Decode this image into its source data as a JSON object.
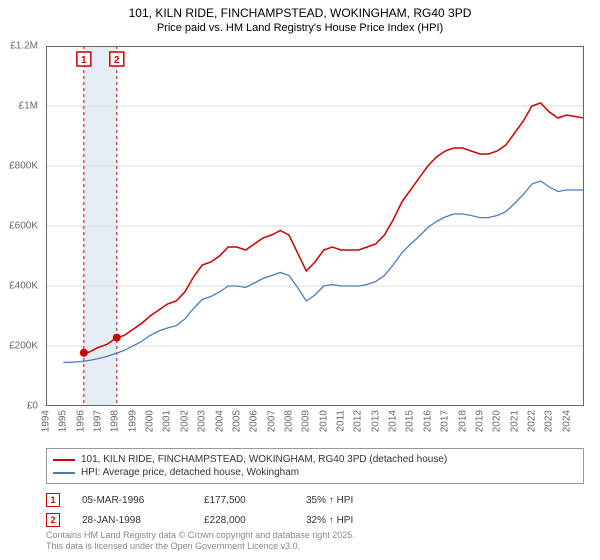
{
  "title_line1": "101, KILN RIDE, FINCHAMPSTEAD, WOKINGHAM, RG40 3PD",
  "title_line2": "Price paid vs. HM Land Registry's House Price Index (HPI)",
  "chart": {
    "type": "line",
    "background_color": "#ffffff",
    "plot_border_color": "#666666",
    "grid_color": "#dcdcdc",
    "xlim": [
      1994,
      2025
    ],
    "ylim": [
      0,
      1200000
    ],
    "y_ticks": [
      0,
      200000,
      400000,
      600000,
      800000,
      1000000,
      1200000
    ],
    "y_tick_labels": [
      "£0",
      "£200K",
      "£400K",
      "£600K",
      "£800K",
      "£1M",
      "£1.2M"
    ],
    "x_ticks": [
      1994,
      1995,
      1996,
      1997,
      1998,
      1999,
      2000,
      2001,
      2002,
      2003,
      2004,
      2005,
      2006,
      2007,
      2008,
      2009,
      2010,
      2011,
      2012,
      2013,
      2014,
      2015,
      2016,
      2017,
      2018,
      2019,
      2020,
      2021,
      2022,
      2023,
      2024
    ],
    "label_fontsize": 10,
    "label_color": "#666666",
    "series": [
      {
        "name": "101, KILN RIDE, FINCHAMPSTEAD, WOKINGHAM, RG40 3PD (detached house)",
        "color": "#cc0000",
        "line_width": 1.5,
        "data": [
          [
            1996.18,
            177500
          ],
          [
            1996.5,
            180000
          ],
          [
            1997,
            195000
          ],
          [
            1997.5,
            205000
          ],
          [
            1998.08,
            228000
          ],
          [
            1998.5,
            235000
          ],
          [
            1999,
            255000
          ],
          [
            1999.5,
            275000
          ],
          [
            2000,
            300000
          ],
          [
            2000.5,
            320000
          ],
          [
            2001,
            340000
          ],
          [
            2001.5,
            350000
          ],
          [
            2002,
            380000
          ],
          [
            2002.5,
            430000
          ],
          [
            2003,
            470000
          ],
          [
            2003.5,
            480000
          ],
          [
            2004,
            500000
          ],
          [
            2004.5,
            530000
          ],
          [
            2005,
            530000
          ],
          [
            2005.5,
            520000
          ],
          [
            2006,
            540000
          ],
          [
            2006.5,
            560000
          ],
          [
            2007,
            570000
          ],
          [
            2007.5,
            585000
          ],
          [
            2008,
            570000
          ],
          [
            2008.5,
            510000
          ],
          [
            2009,
            450000
          ],
          [
            2009.5,
            480000
          ],
          [
            2010,
            520000
          ],
          [
            2010.5,
            530000
          ],
          [
            2011,
            520000
          ],
          [
            2011.5,
            520000
          ],
          [
            2012,
            520000
          ],
          [
            2012.5,
            530000
          ],
          [
            2013,
            540000
          ],
          [
            2013.5,
            570000
          ],
          [
            2014,
            620000
          ],
          [
            2014.5,
            680000
          ],
          [
            2015,
            720000
          ],
          [
            2015.5,
            760000
          ],
          [
            2016,
            800000
          ],
          [
            2016.5,
            830000
          ],
          [
            2017,
            850000
          ],
          [
            2017.5,
            860000
          ],
          [
            2018,
            860000
          ],
          [
            2018.5,
            850000
          ],
          [
            2019,
            840000
          ],
          [
            2019.5,
            840000
          ],
          [
            2020,
            850000
          ],
          [
            2020.5,
            870000
          ],
          [
            2021,
            910000
          ],
          [
            2021.5,
            950000
          ],
          [
            2022,
            1000000
          ],
          [
            2022.5,
            1010000
          ],
          [
            2023,
            980000
          ],
          [
            2023.5,
            960000
          ],
          [
            2024,
            970000
          ],
          [
            2024.5,
            965000
          ],
          [
            2025,
            960000
          ]
        ]
      },
      {
        "name": "HPI: Average price, detached house, Wokingham",
        "color": "#4a7ebb",
        "line_width": 1.3,
        "data": [
          [
            1995,
            145000
          ],
          [
            1995.5,
            146000
          ],
          [
            1996,
            148000
          ],
          [
            1996.5,
            152000
          ],
          [
            1997,
            158000
          ],
          [
            1997.5,
            165000
          ],
          [
            1998,
            175000
          ],
          [
            1998.5,
            185000
          ],
          [
            1999,
            200000
          ],
          [
            1999.5,
            215000
          ],
          [
            2000,
            235000
          ],
          [
            2000.5,
            250000
          ],
          [
            2001,
            260000
          ],
          [
            2001.5,
            268000
          ],
          [
            2002,
            290000
          ],
          [
            2002.5,
            325000
          ],
          [
            2003,
            355000
          ],
          [
            2003.5,
            365000
          ],
          [
            2004,
            380000
          ],
          [
            2004.5,
            400000
          ],
          [
            2005,
            400000
          ],
          [
            2005.5,
            395000
          ],
          [
            2006,
            410000
          ],
          [
            2006.5,
            425000
          ],
          [
            2007,
            435000
          ],
          [
            2007.5,
            445000
          ],
          [
            2008,
            435000
          ],
          [
            2008.5,
            395000
          ],
          [
            2009,
            350000
          ],
          [
            2009.5,
            370000
          ],
          [
            2010,
            400000
          ],
          [
            2010.5,
            405000
          ],
          [
            2011,
            400000
          ],
          [
            2011.5,
            400000
          ],
          [
            2012,
            400000
          ],
          [
            2012.5,
            405000
          ],
          [
            2013,
            415000
          ],
          [
            2013.5,
            435000
          ],
          [
            2014,
            470000
          ],
          [
            2014.5,
            510000
          ],
          [
            2015,
            540000
          ],
          [
            2015.5,
            565000
          ],
          [
            2016,
            595000
          ],
          [
            2016.5,
            615000
          ],
          [
            2017,
            630000
          ],
          [
            2017.5,
            640000
          ],
          [
            2018,
            640000
          ],
          [
            2018.5,
            635000
          ],
          [
            2019,
            628000
          ],
          [
            2019.5,
            628000
          ],
          [
            2020,
            635000
          ],
          [
            2020.5,
            648000
          ],
          [
            2021,
            675000
          ],
          [
            2021.5,
            705000
          ],
          [
            2022,
            740000
          ],
          [
            2022.5,
            750000
          ],
          [
            2023,
            730000
          ],
          [
            2023.5,
            715000
          ],
          [
            2024,
            720000
          ],
          [
            2024.5,
            720000
          ],
          [
            2025,
            720000
          ]
        ]
      }
    ],
    "markers": [
      {
        "x": 1996.18,
        "y": 177500,
        "badge": "1",
        "badge_color": "#cc0000",
        "marker_color": "#cc0000",
        "band_color": "#e6ecf5",
        "band_start": 1996.18
      },
      {
        "x": 1998.08,
        "y": 228000,
        "badge": "2",
        "badge_color": "#cc0000",
        "marker_color": "#cc0000",
        "band_color": "#ffffff",
        "band_start": 1998.08
      }
    ]
  },
  "legend": {
    "border_color": "#999999",
    "items": [
      {
        "color": "#cc0000",
        "label": "101, KILN RIDE, FINCHAMPSTEAD, WOKINGHAM, RG40 3PD (detached house)"
      },
      {
        "color": "#4a7ebb",
        "label": "HPI: Average price, detached house, Wokingham"
      }
    ]
  },
  "events": [
    {
      "badge": "1",
      "badge_color": "#cc0000",
      "date": "05-MAR-1996",
      "price": "£177,500",
      "pct": "35% ↑ HPI"
    },
    {
      "badge": "2",
      "badge_color": "#cc0000",
      "date": "28-JAN-1998",
      "price": "£228,000",
      "pct": "32% ↑ HPI"
    }
  ],
  "footer_line1": "Contains HM Land Registry data © Crown copyright and database right 2025.",
  "footer_line2": "This data is licensed under the Open Government Licence v3.0."
}
